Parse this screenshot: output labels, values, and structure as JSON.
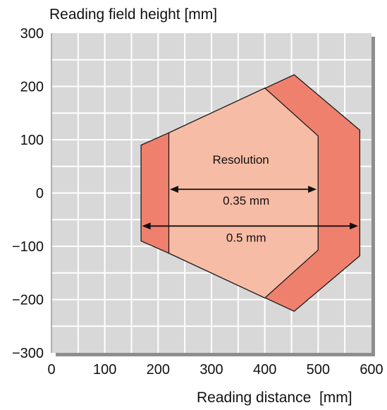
{
  "chart_data": {
    "type": "area",
    "title": "",
    "ylabel": "Reading field height [mm]",
    "xlabel": "Reading distance  [mm]",
    "xlim": [
      0,
      600
    ],
    "ylim": [
      -300,
      300
    ],
    "x_ticks": [
      0,
      100,
      200,
      300,
      400,
      500,
      600
    ],
    "y_ticks": [
      300,
      200,
      100,
      0,
      -100,
      -200,
      -300
    ],
    "y_tick_labels": [
      "300",
      "200",
      "100",
      "0",
      "−100",
      "−200",
      "−300"
    ],
    "grid": true,
    "series": [
      {
        "name": "0.5 mm",
        "points": [
          [
            168,
            90
          ],
          [
            220,
            113
          ],
          [
            455,
            222
          ],
          [
            578,
            118
          ],
          [
            578,
            -118
          ],
          [
            455,
            -222
          ],
          [
            220,
            -113
          ],
          [
            168,
            -90
          ]
        ]
      },
      {
        "name": "0.35 mm",
        "points": [
          [
            220,
            113
          ],
          [
            400,
            197
          ],
          [
            500,
            107
          ],
          [
            500,
            -107
          ],
          [
            400,
            -197
          ],
          [
            220,
            -113
          ]
        ]
      }
    ],
    "annotations": {
      "resolution_label": "Resolution",
      "arrow_035": {
        "label": "0.35 mm",
        "x_from": 222,
        "x_to": 497,
        "y": 7
      },
      "arrow_05": {
        "label": "0.5 mm",
        "x_from": 170,
        "x_to": 575,
        "y": -62
      }
    },
    "colors": {
      "background": "#d8d8d8",
      "grid": "#ffffff",
      "outer_fill": "#f0806e",
      "inner_fill": "#f7bca5",
      "outline": "#1a1a1a",
      "shadow": "#8e8e8e"
    }
  }
}
